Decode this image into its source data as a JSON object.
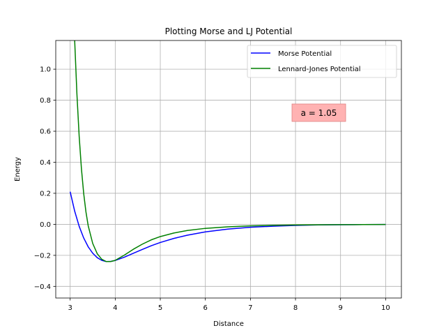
{
  "chart_data": {
    "type": "line",
    "title": "Plotting Morse and LJ Potential",
    "xlabel": "Distance",
    "ylabel": "Energy",
    "xlim": [
      2.68,
      10.35
    ],
    "ylim": [
      -0.475,
      1.185
    ],
    "grid": true,
    "legend_position": "top-right",
    "xticks": [
      3,
      4,
      5,
      6,
      7,
      8,
      9,
      10
    ],
    "xtick_labels": [
      "3",
      "4",
      "5",
      "6",
      "7",
      "8",
      "9",
      "10"
    ],
    "yticks": [
      -0.4,
      -0.2,
      0.0,
      0.2,
      0.4,
      0.6,
      0.8,
      1.0
    ],
    "ytick_labels": [
      "−0.4",
      "−0.2",
      "0.0",
      "0.2",
      "0.4",
      "0.6",
      "0.8",
      "1.0"
    ],
    "series": [
      {
        "name": "Morse Potential",
        "color": "#0000ff",
        "x": [
          3.0,
          3.1,
          3.2,
          3.3,
          3.4,
          3.5,
          3.6,
          3.7,
          3.8,
          3.9,
          4.0,
          4.2,
          4.4,
          4.6,
          4.8,
          5.0,
          5.3,
          5.6,
          6.0,
          6.5,
          7.0,
          7.5,
          8.0,
          8.5,
          9.0,
          9.5,
          10.0
        ],
        "y": [
          0.21,
          0.085,
          -0.013,
          -0.088,
          -0.145,
          -0.186,
          -0.215,
          -0.232,
          -0.24,
          -0.239,
          -0.233,
          -0.212,
          -0.187,
          -0.162,
          -0.138,
          -0.117,
          -0.091,
          -0.07,
          -0.049,
          -0.031,
          -0.019,
          -0.012,
          -0.007,
          -0.004,
          -0.0025,
          -0.0015,
          -0.001
        ]
      },
      {
        "name": "Lennard-Jones Potential",
        "color": "#008000",
        "x": [
          3.1,
          3.15,
          3.2,
          3.25,
          3.3,
          3.35,
          3.4,
          3.5,
          3.6,
          3.7,
          3.8,
          3.9,
          4.0,
          4.2,
          4.4,
          4.6,
          4.8,
          5.0,
          5.3,
          5.6,
          6.0,
          6.5,
          7.0,
          7.5,
          8.0,
          8.5,
          9.0,
          9.5,
          10.0
        ],
        "y": [
          1.185,
          0.838,
          0.566,
          0.358,
          0.199,
          0.08,
          -0.009,
          -0.123,
          -0.189,
          -0.225,
          -0.24,
          -0.24,
          -0.232,
          -0.199,
          -0.161,
          -0.128,
          -0.1,
          -0.079,
          -0.056,
          -0.04,
          -0.026,
          -0.016,
          -0.01,
          -0.0066,
          -0.0045,
          -0.0031,
          -0.0022,
          -0.0016,
          -0.0012
        ]
      }
    ],
    "annotation": {
      "text": "a = 1.05",
      "x": 8.45,
      "y": 0.71,
      "box_color": "#ffb2b2"
    },
    "colors": {
      "axes": "#000000",
      "grid": "#b0b0b0",
      "background": "#ffffff"
    }
  }
}
